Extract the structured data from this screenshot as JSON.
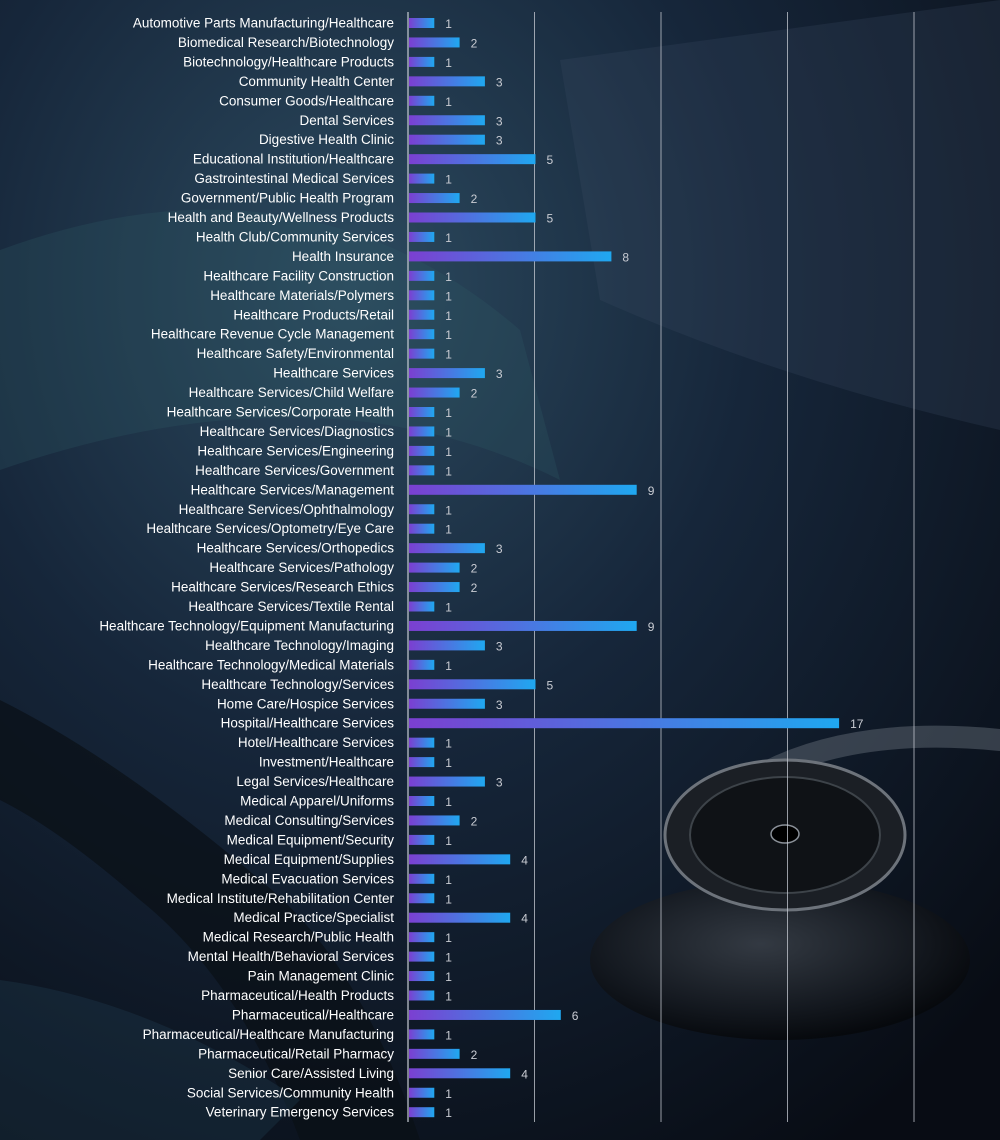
{
  "chart_data": {
    "type": "bar",
    "orientation": "horizontal",
    "title": "",
    "xlabel": "",
    "ylabel": "",
    "xlim": [
      0,
      20
    ],
    "grid": true,
    "legend": "none",
    "colors": {
      "bar_start": "#7b3fd1",
      "bar_end": "#1fa8f0",
      "grid": "#c8ccd4",
      "label": "#ffffff",
      "value": "#c9ccd3"
    },
    "categories": [
      "Automotive Parts Manufacturing/Healthcare",
      "Biomedical Research/Biotechnology",
      "Biotechnology/Healthcare Products",
      "Community Health Center",
      "Consumer Goods/Healthcare",
      "Dental Services",
      "Digestive Health Clinic",
      "Educational Institution/Healthcare",
      "Gastrointestinal Medical Services",
      "Government/Public Health Program",
      "Health and Beauty/Wellness Products",
      "Health Club/Community Services",
      "Health Insurance",
      "Healthcare Facility Construction",
      "Healthcare Materials/Polymers",
      "Healthcare Products/Retail",
      "Healthcare Revenue Cycle Management",
      "Healthcare Safety/Environmental",
      "Healthcare Services",
      "Healthcare Services/Child Welfare",
      "Healthcare Services/Corporate Health",
      "Healthcare Services/Diagnostics",
      "Healthcare Services/Engineering",
      "Healthcare Services/Government",
      "Healthcare Services/Management",
      "Healthcare Services/Ophthalmology",
      "Healthcare Services/Optometry/Eye Care",
      "Healthcare Services/Orthopedics",
      "Healthcare Services/Pathology",
      "Healthcare Services/Research Ethics",
      "Healthcare Services/Textile Rental",
      "Healthcare Technology/Equipment Manufacturing",
      "Healthcare Technology/Imaging",
      "Healthcare Technology/Medical Materials",
      "Healthcare Technology/Services",
      "Home Care/Hospice Services",
      "Hospital/Healthcare Services",
      "Hotel/Healthcare Services",
      "Investment/Healthcare",
      "Legal Services/Healthcare",
      "Medical Apparel/Uniforms",
      "Medical Consulting/Services",
      "Medical Equipment/Security",
      "Medical Equipment/Supplies",
      "Medical Evacuation Services",
      "Medical Institute/Rehabilitation Center",
      "Medical Practice/Specialist",
      "Medical Research/Public Health",
      "Mental Health/Behavioral Services",
      "Pain Management Clinic",
      "Pharmaceutical/Health Products",
      "Pharmaceutical/Healthcare",
      "Pharmaceutical/Healthcare Manufacturing",
      "Pharmaceutical/Retail Pharmacy",
      "Senior Care/Assisted Living",
      "Social Services/Community Health",
      "Veterinary Emergency Services"
    ],
    "values": [
      1,
      2,
      1,
      3,
      1,
      3,
      3,
      5,
      1,
      2,
      5,
      1,
      8,
      1,
      1,
      1,
      1,
      1,
      3,
      2,
      1,
      1,
      1,
      1,
      9,
      1,
      1,
      3,
      2,
      2,
      1,
      9,
      3,
      1,
      5,
      3,
      17,
      1,
      1,
      3,
      1,
      2,
      1,
      4,
      1,
      1,
      4,
      1,
      1,
      1,
      1,
      6,
      1,
      2,
      4,
      1,
      1
    ]
  }
}
